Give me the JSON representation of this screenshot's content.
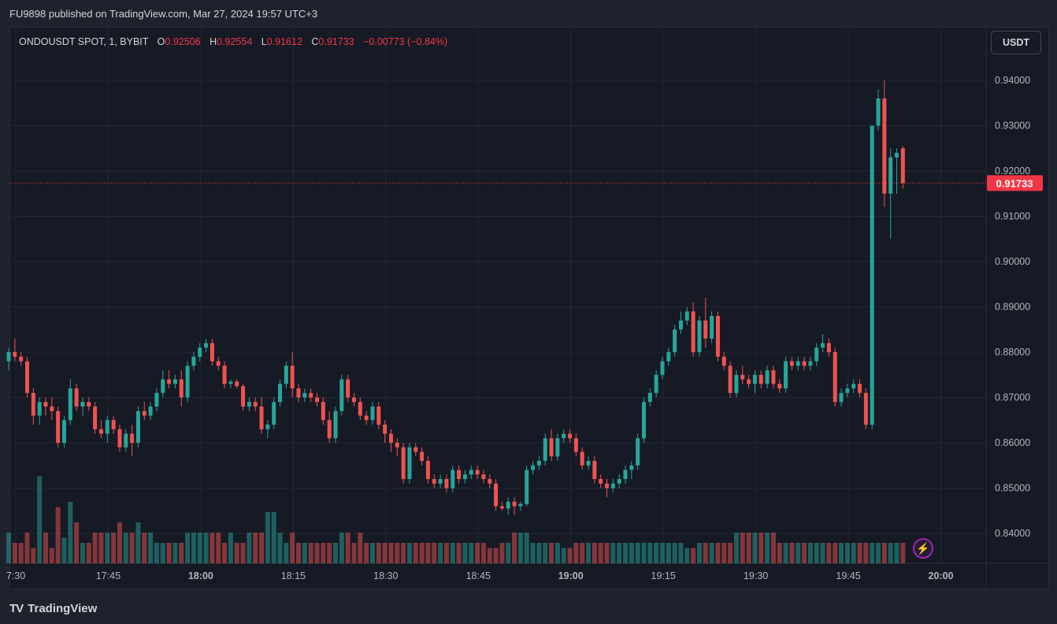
{
  "header": {
    "publish_line": "FU9898 published on TradingView.com, Mar 27, 2024 19:57 UTC+3"
  },
  "legend": {
    "symbol": "ONDOUSDT SPOT, 1, BYBIT",
    "open_label": "O",
    "open": "0.92506",
    "high_label": "H",
    "high": "0.92554",
    "low_label": "L",
    "low": "0.91612",
    "close_label": "C",
    "close": "0.91733",
    "change": "−0.00773 (−0.84%)"
  },
  "currency_button": "USDT",
  "last_price_label": "0.91733",
  "footer": {
    "brand": "TradingView",
    "logo": "TV"
  },
  "colors": {
    "up": "#26a69a",
    "down": "#ef5350",
    "background": "#161a25",
    "grid": "#232733",
    "last_price": "#f23645"
  },
  "icons": {
    "alert": "lightning-icon"
  },
  "chart_data": {
    "type": "candlestick",
    "symbol": "ONDOUSDT",
    "interval": "1",
    "ylim": [
      0.834,
      0.946
    ],
    "y_ticks": [
      "0.94000",
      "0.93000",
      "0.92000",
      "0.91000",
      "0.90000",
      "0.89000",
      "0.88000",
      "0.87000",
      "0.86000",
      "0.85000",
      "0.84000"
    ],
    "x_ticks": [
      {
        "label": "7:30",
        "minute": 0,
        "bold": false
      },
      {
        "label": "17:45",
        "minute": 15,
        "bold": false
      },
      {
        "label": "18:00",
        "minute": 30,
        "bold": true
      },
      {
        "label": "18:15",
        "minute": 45,
        "bold": false
      },
      {
        "label": "18:30",
        "minute": 60,
        "bold": false
      },
      {
        "label": "18:45",
        "minute": 75,
        "bold": false
      },
      {
        "label": "19:00",
        "minute": 90,
        "bold": true
      },
      {
        "label": "19:15",
        "minute": 105,
        "bold": false
      },
      {
        "label": "19:30",
        "minute": 120,
        "bold": false
      },
      {
        "label": "19:45",
        "minute": 135,
        "bold": false
      },
      {
        "label": "20:00",
        "minute": 150,
        "bold": true
      }
    ],
    "last_price": 0.91733,
    "candles": [
      [
        0.878,
        0.881,
        0.876,
        0.88
      ],
      [
        0.88,
        0.883,
        0.878,
        0.879
      ],
      [
        0.879,
        0.88,
        0.877,
        0.878
      ],
      [
        0.878,
        0.879,
        0.87,
        0.871
      ],
      [
        0.871,
        0.872,
        0.864,
        0.866
      ],
      [
        0.866,
        0.87,
        0.864,
        0.869
      ],
      [
        0.869,
        0.87,
        0.866,
        0.868
      ],
      [
        0.868,
        0.87,
        0.865,
        0.867
      ],
      [
        0.867,
        0.868,
        0.859,
        0.86
      ],
      [
        0.86,
        0.866,
        0.859,
        0.865
      ],
      [
        0.865,
        0.874,
        0.864,
        0.872
      ],
      [
        0.872,
        0.873,
        0.867,
        0.868
      ],
      [
        0.868,
        0.87,
        0.866,
        0.869
      ],
      [
        0.869,
        0.87,
        0.867,
        0.868
      ],
      [
        0.868,
        0.869,
        0.862,
        0.863
      ],
      [
        0.863,
        0.865,
        0.861,
        0.862
      ],
      [
        0.862,
        0.866,
        0.86,
        0.865
      ],
      [
        0.865,
        0.866,
        0.862,
        0.863
      ],
      [
        0.863,
        0.864,
        0.858,
        0.859
      ],
      [
        0.859,
        0.863,
        0.858,
        0.862
      ],
      [
        0.862,
        0.864,
        0.857,
        0.86
      ],
      [
        0.86,
        0.868,
        0.859,
        0.867
      ],
      [
        0.867,
        0.869,
        0.865,
        0.866
      ],
      [
        0.866,
        0.869,
        0.865,
        0.868
      ],
      [
        0.868,
        0.872,
        0.867,
        0.871
      ],
      [
        0.871,
        0.876,
        0.87,
        0.874
      ],
      [
        0.874,
        0.876,
        0.872,
        0.873
      ],
      [
        0.873,
        0.875,
        0.872,
        0.874
      ],
      [
        0.874,
        0.876,
        0.868,
        0.87
      ],
      [
        0.87,
        0.878,
        0.869,
        0.877
      ],
      [
        0.877,
        0.88,
        0.876,
        0.879
      ],
      [
        0.879,
        0.882,
        0.878,
        0.881
      ],
      [
        0.881,
        0.883,
        0.88,
        0.882
      ],
      [
        0.882,
        0.883,
        0.877,
        0.878
      ],
      [
        0.878,
        0.879,
        0.876,
        0.877
      ],
      [
        0.877,
        0.878,
        0.872,
        0.873
      ],
      [
        0.873,
        0.874,
        0.872,
        0.8735
      ],
      [
        0.8735,
        0.874,
        0.872,
        0.8725
      ],
      [
        0.8725,
        0.873,
        0.867,
        0.868
      ],
      [
        0.868,
        0.87,
        0.867,
        0.869
      ],
      [
        0.869,
        0.87,
        0.867,
        0.868
      ],
      [
        0.868,
        0.87,
        0.862,
        0.863
      ],
      [
        0.863,
        0.865,
        0.861,
        0.864
      ],
      [
        0.864,
        0.87,
        0.863,
        0.869
      ],
      [
        0.869,
        0.874,
        0.868,
        0.873
      ],
      [
        0.873,
        0.878,
        0.872,
        0.877
      ],
      [
        0.877,
        0.88,
        0.87,
        0.872
      ],
      [
        0.872,
        0.873,
        0.869,
        0.87
      ],
      [
        0.87,
        0.872,
        0.869,
        0.871
      ],
      [
        0.871,
        0.872,
        0.869,
        0.87
      ],
      [
        0.87,
        0.871,
        0.868,
        0.869
      ],
      [
        0.869,
        0.87,
        0.864,
        0.865
      ],
      [
        0.865,
        0.867,
        0.86,
        0.861
      ],
      [
        0.861,
        0.868,
        0.86,
        0.867
      ],
      [
        0.867,
        0.875,
        0.866,
        0.874
      ],
      [
        0.874,
        0.875,
        0.869,
        0.87
      ],
      [
        0.87,
        0.871,
        0.868,
        0.869
      ],
      [
        0.869,
        0.87,
        0.865,
        0.866
      ],
      [
        0.866,
        0.867,
        0.864,
        0.865
      ],
      [
        0.865,
        0.869,
        0.864,
        0.868
      ],
      [
        0.868,
        0.869,
        0.863,
        0.864
      ],
      [
        0.864,
        0.865,
        0.86,
        0.862
      ],
      [
        0.862,
        0.863,
        0.858,
        0.86
      ],
      [
        0.86,
        0.861,
        0.857,
        0.859
      ],
      [
        0.859,
        0.86,
        0.851,
        0.852
      ],
      [
        0.852,
        0.86,
        0.851,
        0.859
      ],
      [
        0.859,
        0.86,
        0.857,
        0.858
      ],
      [
        0.858,
        0.859,
        0.855,
        0.856
      ],
      [
        0.856,
        0.857,
        0.851,
        0.852
      ],
      [
        0.852,
        0.853,
        0.85,
        0.851
      ],
      [
        0.851,
        0.853,
        0.85,
        0.852
      ],
      [
        0.852,
        0.853,
        0.849,
        0.85
      ],
      [
        0.85,
        0.855,
        0.849,
        0.854
      ],
      [
        0.854,
        0.855,
        0.851,
        0.852
      ],
      [
        0.852,
        0.854,
        0.851,
        0.853
      ],
      [
        0.853,
        0.855,
        0.852,
        0.854
      ],
      [
        0.854,
        0.855,
        0.852,
        0.853
      ],
      [
        0.853,
        0.854,
        0.851,
        0.852
      ],
      [
        0.852,
        0.853,
        0.85,
        0.851
      ],
      [
        0.851,
        0.852,
        0.845,
        0.846
      ],
      [
        0.846,
        0.847,
        0.845,
        0.8455
      ],
      [
        0.8455,
        0.848,
        0.844,
        0.847
      ],
      [
        0.847,
        0.848,
        0.844,
        0.846
      ],
      [
        0.846,
        0.847,
        0.845,
        0.8465
      ],
      [
        0.8465,
        0.855,
        0.846,
        0.854
      ],
      [
        0.854,
        0.856,
        0.853,
        0.855
      ],
      [
        0.855,
        0.857,
        0.854,
        0.856
      ],
      [
        0.856,
        0.862,
        0.855,
        0.861
      ],
      [
        0.861,
        0.863,
        0.856,
        0.857
      ],
      [
        0.857,
        0.862,
        0.856,
        0.861
      ],
      [
        0.861,
        0.863,
        0.86,
        0.862
      ],
      [
        0.862,
        0.863,
        0.86,
        0.861
      ],
      [
        0.861,
        0.862,
        0.857,
        0.858
      ],
      [
        0.858,
        0.859,
        0.854,
        0.855
      ],
      [
        0.855,
        0.857,
        0.854,
        0.856
      ],
      [
        0.856,
        0.857,
        0.851,
        0.852
      ],
      [
        0.852,
        0.853,
        0.85,
        0.851
      ],
      [
        0.851,
        0.852,
        0.848,
        0.85
      ],
      [
        0.85,
        0.852,
        0.849,
        0.851
      ],
      [
        0.851,
        0.853,
        0.85,
        0.852
      ],
      [
        0.852,
        0.855,
        0.851,
        0.854
      ],
      [
        0.854,
        0.856,
        0.852,
        0.855
      ],
      [
        0.855,
        0.862,
        0.854,
        0.861
      ],
      [
        0.861,
        0.87,
        0.86,
        0.869
      ],
      [
        0.869,
        0.872,
        0.868,
        0.871
      ],
      [
        0.871,
        0.876,
        0.87,
        0.875
      ],
      [
        0.875,
        0.879,
        0.874,
        0.878
      ],
      [
        0.878,
        0.881,
        0.877,
        0.88
      ],
      [
        0.88,
        0.886,
        0.879,
        0.885
      ],
      [
        0.885,
        0.889,
        0.884,
        0.887
      ],
      [
        0.887,
        0.89,
        0.886,
        0.889
      ],
      [
        0.889,
        0.891,
        0.879,
        0.88
      ],
      [
        0.88,
        0.888,
        0.879,
        0.887
      ],
      [
        0.887,
        0.892,
        0.881,
        0.883
      ],
      [
        0.883,
        0.889,
        0.882,
        0.888
      ],
      [
        0.888,
        0.889,
        0.878,
        0.879
      ],
      [
        0.879,
        0.88,
        0.876,
        0.877
      ],
      [
        0.877,
        0.878,
        0.87,
        0.871
      ],
      [
        0.871,
        0.876,
        0.87,
        0.875
      ],
      [
        0.875,
        0.877,
        0.873,
        0.874
      ],
      [
        0.874,
        0.875,
        0.872,
        0.873
      ],
      [
        0.873,
        0.876,
        0.871,
        0.875
      ],
      [
        0.875,
        0.876,
        0.872,
        0.873
      ],
      [
        0.873,
        0.877,
        0.872,
        0.876
      ],
      [
        0.876,
        0.877,
        0.872,
        0.873
      ],
      [
        0.873,
        0.874,
        0.871,
        0.872
      ],
      [
        0.872,
        0.879,
        0.871,
        0.878
      ],
      [
        0.878,
        0.879,
        0.876,
        0.877
      ],
      [
        0.877,
        0.879,
        0.876,
        0.878
      ],
      [
        0.878,
        0.879,
        0.876,
        0.877
      ],
      [
        0.877,
        0.879,
        0.876,
        0.878
      ],
      [
        0.878,
        0.882,
        0.877,
        0.881
      ],
      [
        0.881,
        0.884,
        0.88,
        0.882
      ],
      [
        0.882,
        0.883,
        0.879,
        0.88
      ],
      [
        0.88,
        0.881,
        0.868,
        0.869
      ],
      [
        0.869,
        0.872,
        0.868,
        0.871
      ],
      [
        0.871,
        0.873,
        0.87,
        0.872
      ],
      [
        0.872,
        0.874,
        0.871,
        0.873
      ],
      [
        0.873,
        0.874,
        0.87,
        0.871
      ],
      [
        0.871,
        0.872,
        0.863,
        0.864
      ],
      [
        0.864,
        0.93,
        0.863,
        0.93
      ],
      [
        0.93,
        0.938,
        0.929,
        0.936
      ],
      [
        0.936,
        0.94,
        0.912,
        0.915
      ],
      [
        0.915,
        0.925,
        0.905,
        0.923
      ],
      [
        0.923,
        0.925,
        0.915,
        0.924
      ],
      [
        0.925,
        0.9255,
        0.9161,
        0.9173
      ]
    ],
    "volume": [
      3,
      2,
      2,
      3,
      1.5,
      8.5,
      3,
      1.5,
      5.5,
      2.5,
      6,
      4,
      2,
      2,
      3,
      3,
      3,
      3,
      4,
      3,
      3,
      4,
      3,
      3,
      2,
      2,
      2,
      2,
      2,
      3,
      3,
      3,
      3,
      3,
      3,
      2,
      3,
      2,
      2,
      3,
      3,
      3,
      5,
      5,
      3,
      2,
      3,
      2,
      2,
      2,
      2,
      2,
      2,
      2,
      3,
      3,
      2,
      3,
      2,
      2,
      2,
      2,
      2,
      2,
      2,
      2,
      2,
      2,
      2,
      2,
      2,
      2,
      2,
      2,
      2,
      2,
      2,
      2,
      1.5,
      1.5,
      2,
      2,
      3,
      3,
      3,
      2,
      2,
      2,
      2,
      2,
      1.5,
      1.5,
      2,
      2,
      2,
      2,
      2,
      2,
      2,
      2,
      2,
      2,
      2,
      2,
      2,
      2,
      2,
      2,
      2,
      2,
      1.5,
      1.5,
      2,
      2,
      2,
      2,
      2,
      2,
      3,
      3,
      3,
      3,
      3,
      3,
      3,
      2,
      2,
      2,
      2,
      2,
      2,
      2,
      2,
      2,
      2,
      2,
      2,
      2,
      2,
      2,
      2,
      2,
      2,
      2,
      2,
      2,
      2,
      2,
      2,
      2,
      2,
      2,
      2,
      2,
      2,
      2,
      10,
      6,
      3,
      1.5
    ]
  }
}
